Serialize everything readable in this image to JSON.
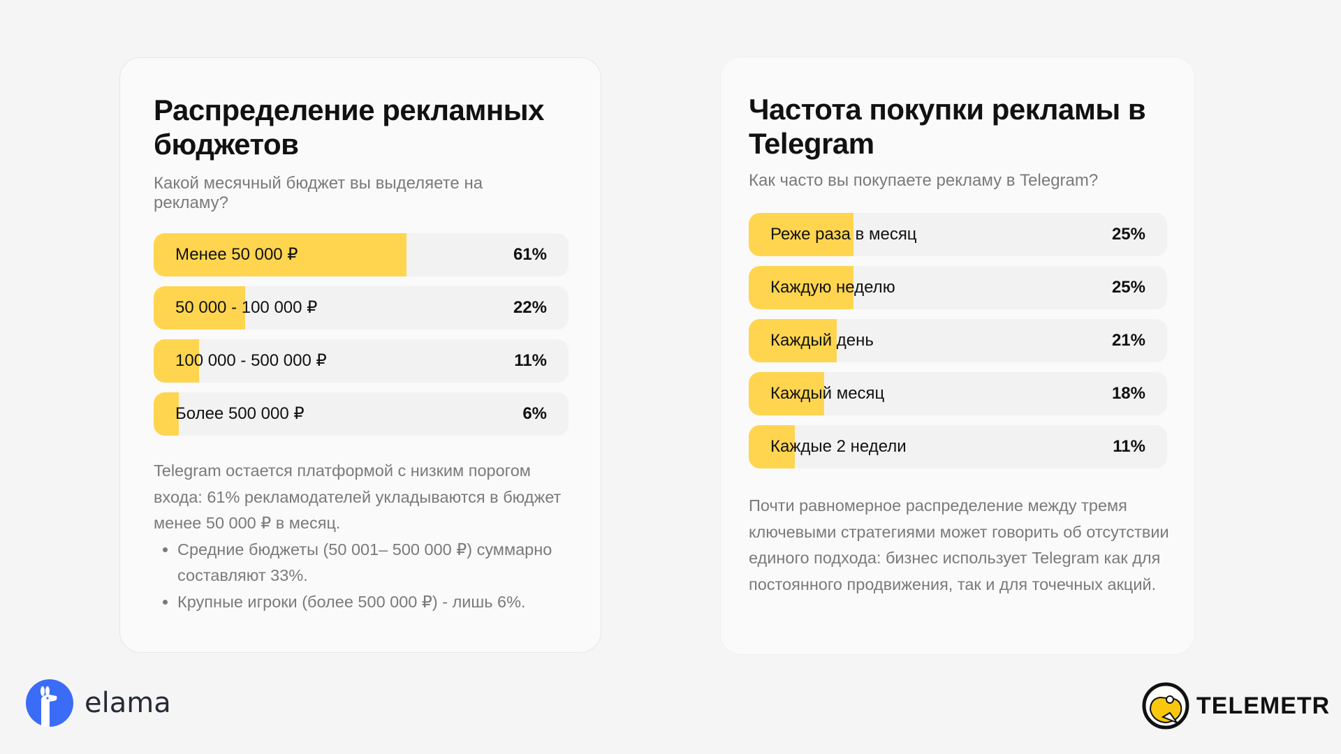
{
  "left_card": {
    "title": "Распределение рекламных бюджетов",
    "subtitle": "Какой месячный бюджет вы выделяете на рекламу?",
    "bars": [
      {
        "label": "Менее 50 000 ₽",
        "value": "61%",
        "percent": 61
      },
      {
        "label": "50 000 - 100 000 ₽",
        "value": "22%",
        "percent": 22
      },
      {
        "label": "100 000 - 500 000 ₽",
        "value": "11%",
        "percent": 11
      },
      {
        "label": "Более 500 000 ₽",
        "value": "6%",
        "percent": 6
      }
    ],
    "paragraph": "Telegram остается платформой с низким порогом входа: 61% рекламодателей укладываются в бюджет менее 50 000 ₽ в месяц.",
    "bullets": [
      "Средние бюджеты (50 001– 500 000 ₽) суммарно составляют 33%.",
      "Крупные игроки (более 500 000 ₽) - лишь 6%."
    ]
  },
  "right_card": {
    "title": "Частота покупки рекламы в Telegram",
    "subtitle": "Как часто вы покупаете рекламу в Telegram?",
    "bars": [
      {
        "label": "Реже раза в месяц",
        "value": "25%",
        "percent": 25
      },
      {
        "label": "Каждую неделю",
        "value": "25%",
        "percent": 25
      },
      {
        "label": "Каждый день",
        "value": "21%",
        "percent": 21
      },
      {
        "label": "Каждый месяц",
        "value": "18%",
        "percent": 18
      },
      {
        "label": "Каждые 2 недели",
        "value": "11%",
        "percent": 11
      }
    ],
    "paragraph": "Почти равномерное распределение между тремя ключевыми стратегиями может говорить об отсутствии единого подхода: бизнес использует Telegram как для постоянного продвижения, так и для точечных акций."
  },
  "logos": {
    "left": "elama",
    "right": "TELEMETR"
  },
  "colors": {
    "bar_fill": "#ffd54f",
    "bar_track": "#f2f2f2",
    "elama_blue": "#3b6cf6"
  }
}
